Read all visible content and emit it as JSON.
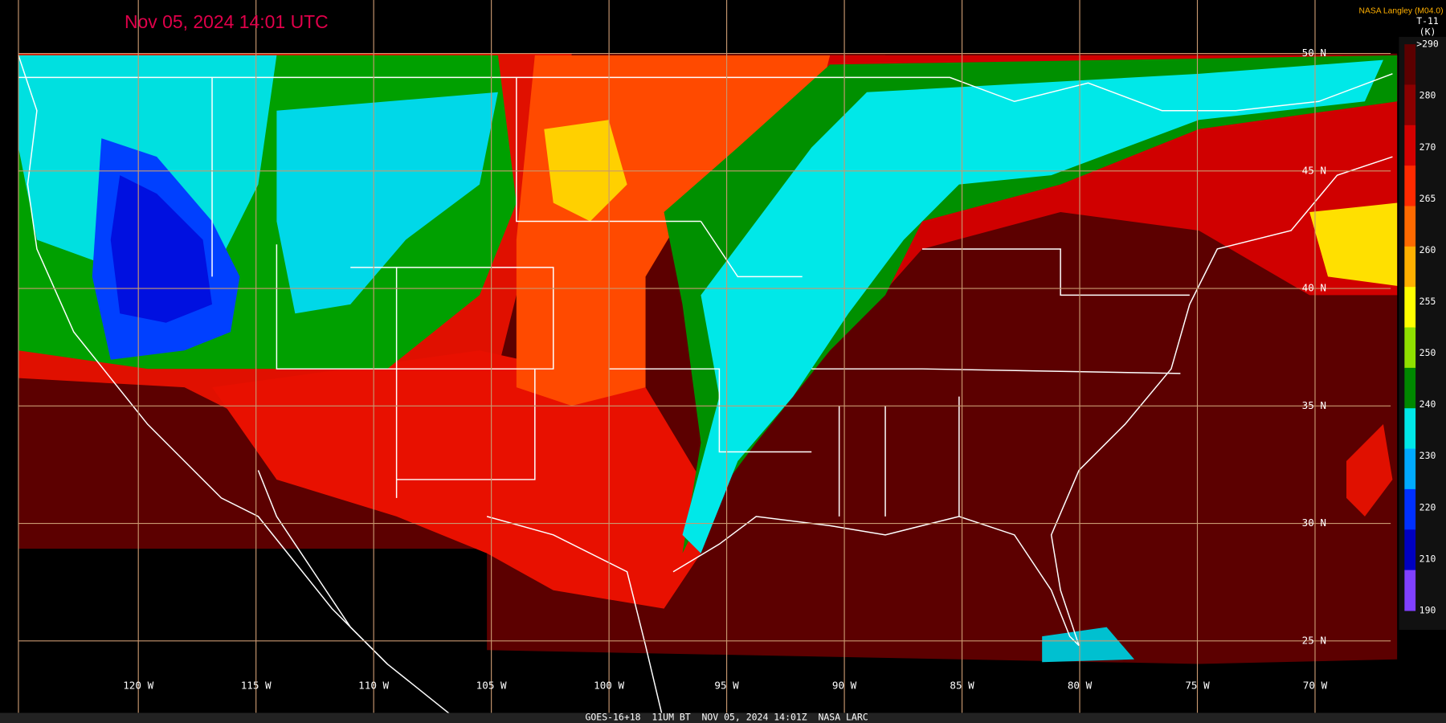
{
  "header": {
    "timestamp": "Nov 05, 2024 14:01 UTC",
    "producer": "NASA Langley (M04.0)"
  },
  "legend": {
    "title": "T-11",
    "units": "(K)",
    "labels": [
      ">290",
      "280",
      "270",
      "265",
      "260",
      "255",
      "250",
      "240",
      "230",
      "220",
      "210",
      "190"
    ],
    "colors": [
      "#5c0000",
      "#8b0000",
      "#d40000",
      "#ff2a00",
      "#ff6a00",
      "#ffb000",
      "#ffff00",
      "#8fe000",
      "#008800",
      "#00e8e8",
      "#00aaff",
      "#0030ff",
      "#0000c0",
      "#8040ff"
    ]
  },
  "grid": {
    "latitudes": [
      "50 N",
      "45 N",
      "40 N",
      "35 N",
      "30 N",
      "25 N"
    ],
    "longitudes": [
      "120 W",
      "115 W",
      "110 W",
      "105 W",
      "100 W",
      "95 W",
      "90 W",
      "85 W",
      "80 W",
      "75 W",
      "70 W"
    ]
  },
  "footer": "GOES-16+18  11UM BT  NOV 05, 2024 14:01Z  NASA LARC"
}
